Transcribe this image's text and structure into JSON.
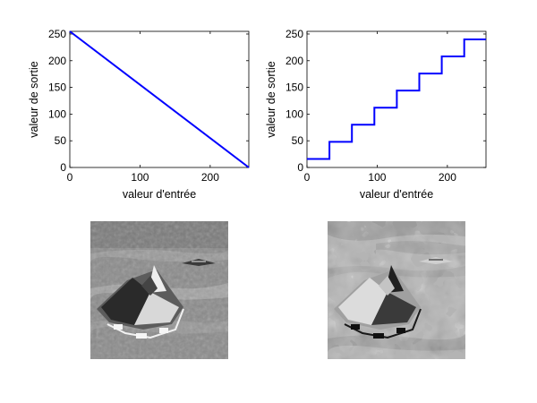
{
  "chart_data": [
    {
      "type": "line",
      "x": [
        0,
        255
      ],
      "y": [
        255,
        0
      ],
      "xlabel": "valeur d'entrée",
      "ylabel": "valeur de sortie",
      "xlim": [
        0,
        255
      ],
      "ylim": [
        0,
        255
      ],
      "xticks": [
        "0",
        "100",
        "200"
      ],
      "yticks": [
        "0",
        "50",
        "100",
        "150",
        "200",
        "250"
      ],
      "grid": false,
      "color": "#0000ff"
    },
    {
      "type": "line",
      "step": true,
      "x": [
        0,
        32,
        32,
        64,
        64,
        96,
        96,
        128,
        128,
        160,
        160,
        192,
        192,
        224,
        224,
        255
      ],
      "y": [
        16,
        16,
        48,
        48,
        80,
        80,
        112,
        112,
        144,
        144,
        176,
        176,
        208,
        208,
        240,
        240
      ],
      "xlabel": "valeur d'entrée",
      "ylabel": "valeur de sortie",
      "xlim": [
        0,
        255
      ],
      "ylim": [
        0,
        255
      ],
      "xticks": [
        "0",
        "100",
        "200"
      ],
      "yticks": [
        "0",
        "50",
        "100",
        "150",
        "200",
        "250"
      ],
      "grid": false,
      "color": "#0000ff"
    }
  ],
  "images": [
    {
      "name": "inverted-airplane-image",
      "content": "negative grayscale photo of aircraft above clouds"
    },
    {
      "name": "posterized-airplane-image",
      "content": "posterized 8-level grayscale photo of aircraft above clouds"
    }
  ]
}
